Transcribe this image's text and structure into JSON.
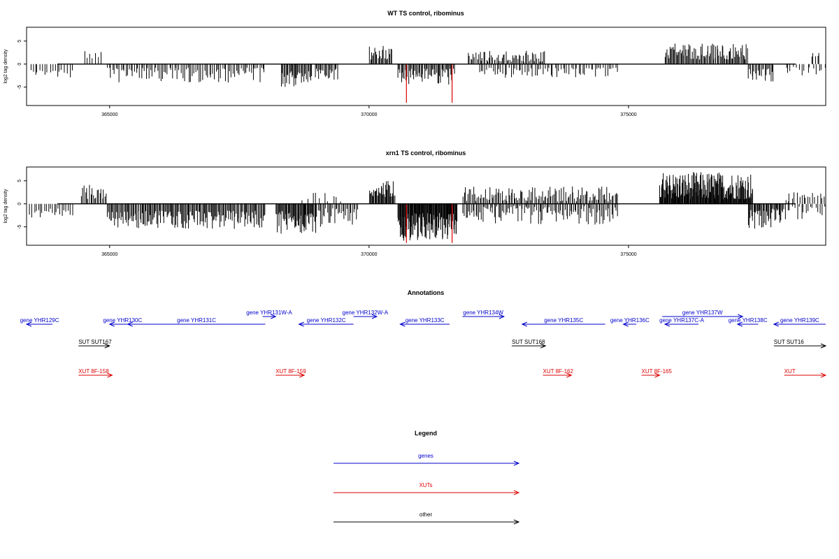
{
  "chart_data": [
    {
      "type": "bar",
      "title": "WT TS control, ribominus",
      "xlabel": "",
      "ylabel": "log2 tag density",
      "xlim": [
        363400,
        378800
      ],
      "ylim": [
        -9,
        8
      ],
      "xticks": [
        365000,
        370000,
        375000
      ],
      "yticks": [
        -5,
        0,
        5
      ],
      "colors": {
        "default": "#000000",
        "highlight": "#dd0000"
      },
      "regions": [
        {
          "from": 363450,
          "to": 364300,
          "sign": -1,
          "lo": 1.0,
          "hi": 3.0,
          "n": 18
        },
        {
          "from": 364500,
          "to": 364850,
          "sign": 1,
          "lo": 1.0,
          "hi": 3.0,
          "n": 7
        },
        {
          "from": 364950,
          "to": 368000,
          "sign": -1,
          "lo": 0.8,
          "hi": 4.0,
          "n": 95
        },
        {
          "from": 368300,
          "to": 368900,
          "sign": -1,
          "lo": 1.5,
          "hi": 5.0,
          "n": 32
        },
        {
          "from": 368950,
          "to": 369400,
          "sign": -1,
          "lo": 1.0,
          "hi": 3.5,
          "n": 20
        },
        {
          "from": 370000,
          "to": 370450,
          "sign": 1,
          "lo": 1.0,
          "hi": 4.0,
          "n": 22
        },
        {
          "from": 370550,
          "to": 371650,
          "sign": -1,
          "lo": 1.0,
          "hi": 4.5,
          "n": 55
        },
        {
          "from": 371900,
          "to": 373400,
          "sign": 1,
          "lo": 0.5,
          "hi": 3.0,
          "n": 60
        },
        {
          "from": 372100,
          "to": 374800,
          "sign": -1,
          "lo": 0.8,
          "hi": 3.0,
          "n": 70
        },
        {
          "from": 375700,
          "to": 377300,
          "sign": 1,
          "lo": 1.0,
          "hi": 4.5,
          "n": 85
        },
        {
          "from": 377300,
          "to": 377800,
          "sign": -1,
          "lo": 1.0,
          "hi": 4.0,
          "n": 22
        },
        {
          "from": 378000,
          "to": 378800,
          "sign": -1,
          "lo": 0.5,
          "hi": 2.5,
          "n": 15
        },
        {
          "from": 378500,
          "to": 378700,
          "sign": 1,
          "lo": 1.0,
          "hi": 2.8,
          "n": 5
        }
      ],
      "highlights": [
        {
          "x": 370720,
          "y": -8.4
        },
        {
          "x": 371600,
          "y": -8.4
        }
      ]
    },
    {
      "type": "bar",
      "title": "xrn1 TS control, ribominus",
      "xlabel": "",
      "ylabel": "log2 tag density",
      "xlim": [
        363400,
        378800
      ],
      "ylim": [
        -9,
        8
      ],
      "xticks": [
        365000,
        370000,
        375000
      ],
      "yticks": [
        -5,
        0,
        5
      ],
      "colors": {
        "default": "#000000",
        "highlight": "#dd0000"
      },
      "regions": [
        {
          "from": 363450,
          "to": 364300,
          "sign": -1,
          "lo": 1.0,
          "hi": 3.0,
          "n": 22
        },
        {
          "from": 364450,
          "to": 364950,
          "sign": 1,
          "lo": 1.0,
          "hi": 4.5,
          "n": 20
        },
        {
          "from": 364950,
          "to": 368000,
          "sign": -1,
          "lo": 1.5,
          "hi": 5.5,
          "n": 160
        },
        {
          "from": 368200,
          "to": 369000,
          "sign": -1,
          "lo": 1.5,
          "hi": 6.5,
          "n": 55
        },
        {
          "from": 369000,
          "to": 369800,
          "sign": -1,
          "lo": 1.0,
          "hi": 5.0,
          "n": 30
        },
        {
          "from": 368700,
          "to": 369500,
          "sign": 1,
          "lo": 0.5,
          "hi": 2.5,
          "n": 10
        },
        {
          "from": 370000,
          "to": 370500,
          "sign": 1,
          "lo": 1.5,
          "hi": 5.0,
          "n": 35
        },
        {
          "from": 370550,
          "to": 371700,
          "sign": -1,
          "lo": 2.0,
          "hi": 8.0,
          "n": 110
        },
        {
          "from": 371800,
          "to": 374800,
          "sign": 1,
          "lo": 0.5,
          "hi": 3.8,
          "n": 120
        },
        {
          "from": 371800,
          "to": 374800,
          "sign": -1,
          "lo": 0.5,
          "hi": 4.5,
          "n": 110
        },
        {
          "from": 375600,
          "to": 377400,
          "sign": 1,
          "lo": 1.0,
          "hi": 7.0,
          "n": 170
        },
        {
          "from": 377300,
          "to": 378000,
          "sign": -1,
          "lo": 1.0,
          "hi": 5.5,
          "n": 40
        },
        {
          "from": 378000,
          "to": 378800,
          "sign": 1,
          "lo": 0.5,
          "hi": 2.5,
          "n": 18
        },
        {
          "from": 378000,
          "to": 378800,
          "sign": -1,
          "lo": 0.5,
          "hi": 3.5,
          "n": 18
        }
      ],
      "highlights": [
        {
          "x": 370720,
          "y": -8.5
        },
        {
          "x": 371600,
          "y": -8.5
        }
      ]
    }
  ],
  "annotations": {
    "title": "Annotations",
    "xlim": [
      363400,
      378800
    ],
    "colors": {
      "gene": "#0000cc",
      "xut": "#dd0000",
      "other": "#000000"
    },
    "genes": [
      {
        "label": "gene YHR129C",
        "from": 363400,
        "to": 363900,
        "strand": "-",
        "row": 1
      },
      {
        "label": "gene YHR130C",
        "from": 365000,
        "to": 365500,
        "strand": "-",
        "row": 1
      },
      {
        "label": "gene YHR131C",
        "from": 365350,
        "to": 368000,
        "strand": "-",
        "row": 1
      },
      {
        "label": "gene YHR131W-A",
        "from": 367950,
        "to": 368200,
        "strand": "+",
        "row": 0
      },
      {
        "label": "gene YHR132C",
        "from": 368650,
        "to": 369700,
        "strand": "-",
        "row": 1
      },
      {
        "label": "gene YHR132W-A",
        "from": 369700,
        "to": 370150,
        "strand": "+",
        "row": 0
      },
      {
        "label": "gene YHR133C",
        "from": 370600,
        "to": 371550,
        "strand": "-",
        "row": 1
      },
      {
        "label": "gene YHR134W",
        "from": 371800,
        "to": 372600,
        "strand": "+",
        "row": 0
      },
      {
        "label": "gene YHR135C",
        "from": 372950,
        "to": 374550,
        "strand": "-",
        "row": 1
      },
      {
        "label": "gene YHR136C",
        "from": 374900,
        "to": 375150,
        "strand": "-",
        "row": 1
      },
      {
        "label": "gene YHR137W",
        "from": 375650,
        "to": 377200,
        "strand": "+",
        "row": 0
      },
      {
        "label": "gene YHR137C-A",
        "from": 375700,
        "to": 376350,
        "strand": "-",
        "row": 1
      },
      {
        "label": "gene YHR138C",
        "from": 377100,
        "to": 377500,
        "strand": "-",
        "row": 1
      },
      {
        "label": "gene YHR139C",
        "from": 377800,
        "to": 378800,
        "strand": "-",
        "row": 1
      }
    ],
    "suts": [
      {
        "label": "SUT SUT167",
        "from": 364400,
        "to": 365000,
        "strand": "+"
      },
      {
        "label": "SUT SUT168",
        "from": 372750,
        "to": 373400,
        "strand": "+"
      },
      {
        "label": "SUT SUT16",
        "from": 377800,
        "to": 378800,
        "strand": "+"
      }
    ],
    "xuts": [
      {
        "label": "XUT 8F-158",
        "from": 364400,
        "to": 365050,
        "strand": "+"
      },
      {
        "label": "XUT 8F-159",
        "from": 368200,
        "to": 368750,
        "strand": "+"
      },
      {
        "label": "XUT 8F-162",
        "from": 373350,
        "to": 373900,
        "strand": "+"
      },
      {
        "label": "XUT 8F-165",
        "from": 375250,
        "to": 375600,
        "strand": "+"
      },
      {
        "label": "XUT",
        "from": 378000,
        "to": 378800,
        "strand": "+"
      }
    ]
  },
  "legend": {
    "title": "Legend",
    "items": [
      {
        "label": "genes",
        "color": "#0000cc"
      },
      {
        "label": "XUTs",
        "color": "#dd0000"
      },
      {
        "label": "other",
        "color": "#000000"
      }
    ]
  }
}
